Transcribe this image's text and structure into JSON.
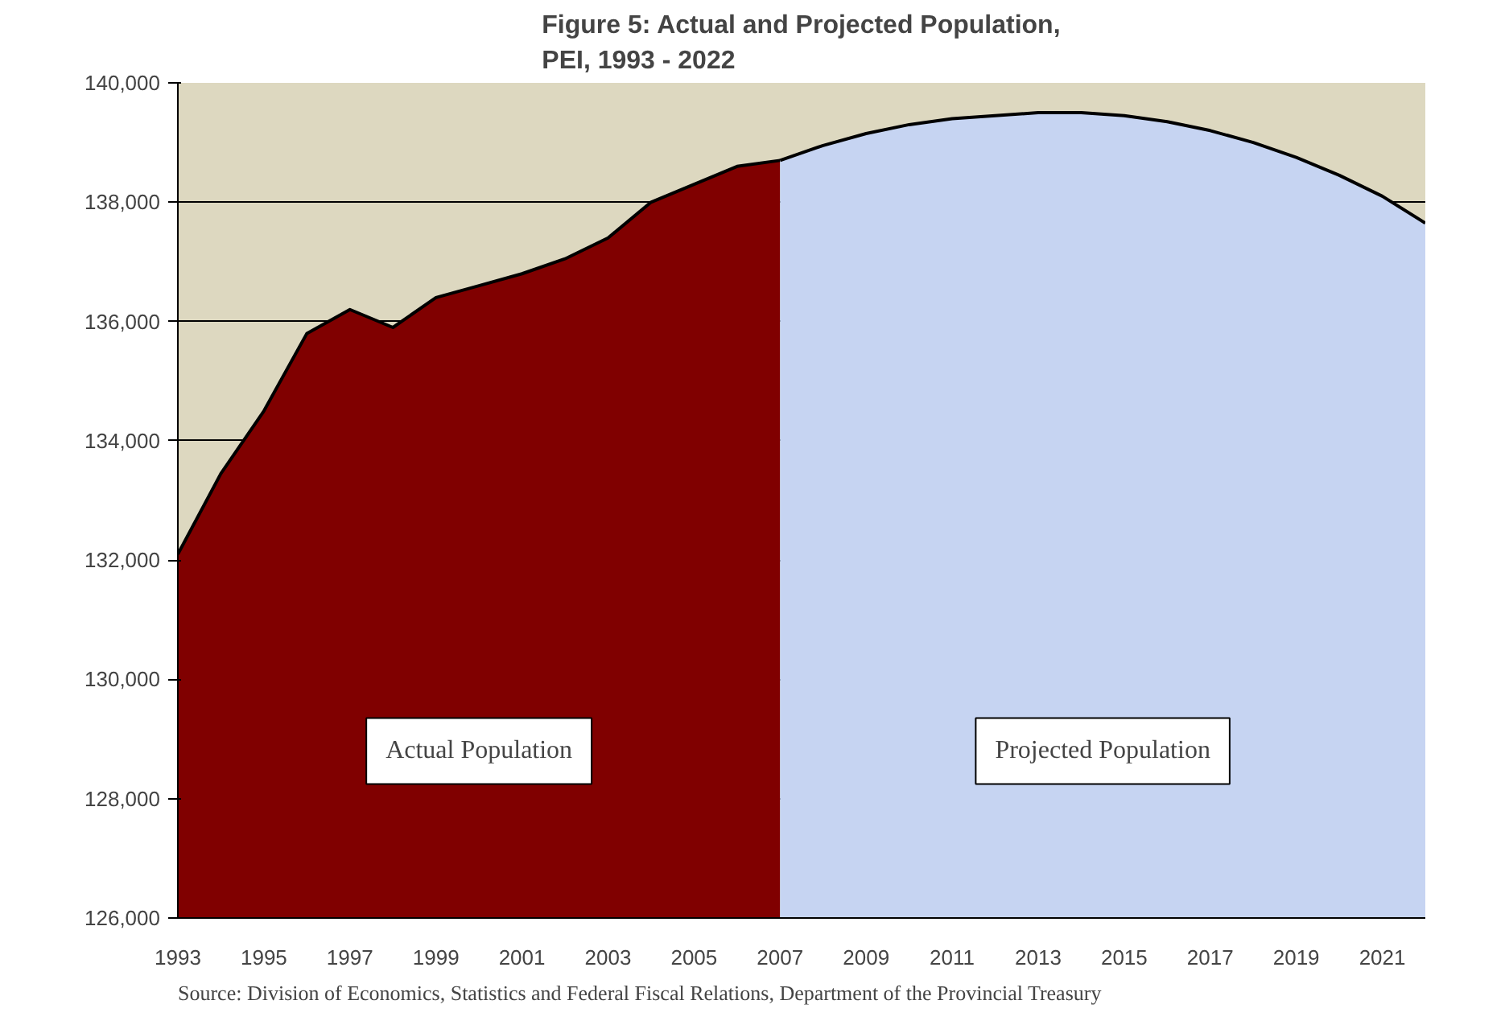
{
  "chart_data": {
    "type": "area",
    "title": "Figure 5: Actual and Projected Population,\nPEI, 1993 - 2022",
    "series": [
      {
        "name": "Actual Population",
        "color": "#800000",
        "x": [
          1993,
          1994,
          1995,
          1996,
          1997,
          1998,
          1999,
          2000,
          2001,
          2002,
          2003,
          2004,
          2005,
          2006,
          2007
        ],
        "values": [
          132100,
          133450,
          134500,
          135800,
          136200,
          135900,
          136400,
          136600,
          136800,
          137050,
          137400,
          138000,
          138300,
          138600,
          138700
        ]
      },
      {
        "name": "Projected Population",
        "color": "#c6d4f2",
        "x": [
          2007,
          2008,
          2009,
          2010,
          2011,
          2012,
          2013,
          2014,
          2015,
          2016,
          2017,
          2018,
          2019,
          2020,
          2021,
          2022
        ],
        "values": [
          138700,
          138950,
          139150,
          139300,
          139400,
          139450,
          139500,
          139500,
          139450,
          139350,
          139200,
          139000,
          138750,
          138450,
          138100,
          137650
        ]
      }
    ],
    "xlim": [
      1993,
      2022
    ],
    "xticks": [
      1993,
      1995,
      1997,
      1999,
      2001,
      2003,
      2005,
      2007,
      2009,
      2011,
      2013,
      2015,
      2017,
      2019,
      2021
    ],
    "ylim": [
      126000,
      140000
    ],
    "yticks": [
      {
        "value": 126000,
        "label": "126,000"
      },
      {
        "value": 128000,
        "label": "128,000"
      },
      {
        "value": 130000,
        "label": "130,000"
      },
      {
        "value": 132000,
        "label": "132,000"
      },
      {
        "value": 134000,
        "label": "134,000"
      },
      {
        "value": 136000,
        "label": "136,000"
      },
      {
        "value": 138000,
        "label": "138,000"
      },
      {
        "value": 140000,
        "label": "140,000"
      }
    ],
    "grid": "y",
    "legend": false,
    "annotations": [
      "Source: Division of Economics, Statistics and Federal Fiscal Relations, Department of the Provincial Treasury"
    ]
  }
}
